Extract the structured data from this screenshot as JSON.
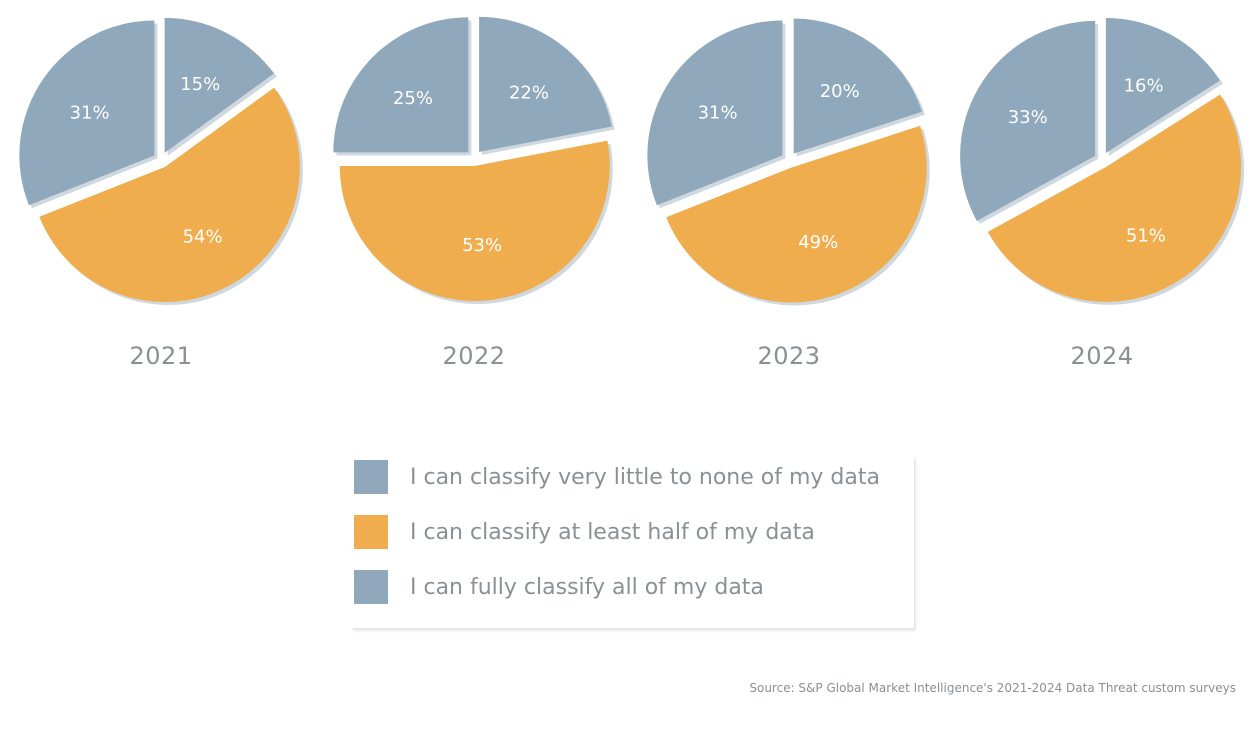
{
  "colors": {
    "blue": "#8fa8bb",
    "orange": "#f0ad4e",
    "shadow": "#aab8c4",
    "text": "#8a9094"
  },
  "legend": {
    "items": [
      {
        "label": "I can classify very little to none of my data",
        "color": "#8fa8bb"
      },
      {
        "label": "I can classify at least half of my data",
        "color": "#f0ad4e"
      },
      {
        "label": "I can fully classify all of my data",
        "color": "#8fa8bb"
      }
    ]
  },
  "source": "Source: S&P Global Market Intelligence's 2021-2024 Data Threat custom surveys",
  "chart_data": [
    {
      "type": "pie",
      "title": "2021",
      "slices": [
        {
          "label": "15%",
          "value": 15,
          "category": "I can fully classify all of my data",
          "color": "#8fa8bb"
        },
        {
          "label": "54%",
          "value": 54,
          "category": "I can classify at least half of my data",
          "color": "#f0ad4e"
        },
        {
          "label": "31%",
          "value": 31,
          "category": "I can classify very little to none of my data",
          "color": "#8fa8bb"
        }
      ]
    },
    {
      "type": "pie",
      "title": "2022",
      "slices": [
        {
          "label": "22%",
          "value": 22,
          "category": "I can fully classify all of my data",
          "color": "#8fa8bb"
        },
        {
          "label": "53%",
          "value": 53,
          "category": "I can classify at least half of my data",
          "color": "#f0ad4e"
        },
        {
          "label": "25%",
          "value": 25,
          "category": "I can classify very little to none of my data",
          "color": "#8fa8bb"
        }
      ]
    },
    {
      "type": "pie",
      "title": "2023",
      "slices": [
        {
          "label": "20%",
          "value": 20,
          "category": "I can fully classify all of my data",
          "color": "#8fa8bb"
        },
        {
          "label": "49%",
          "value": 49,
          "category": "I can classify at least half of my data",
          "color": "#f0ad4e"
        },
        {
          "label": "31%",
          "value": 31,
          "category": "I can classify very little to none of my data",
          "color": "#8fa8bb"
        }
      ]
    },
    {
      "type": "pie",
      "title": "2024",
      "slices": [
        {
          "label": "16%",
          "value": 16,
          "category": "I can fully classify all of my data",
          "color": "#8fa8bb"
        },
        {
          "label": "51%",
          "value": 51,
          "category": "I can classify at least half of my data",
          "color": "#f0ad4e"
        },
        {
          "label": "33%",
          "value": 33,
          "category": "I can classify very little to none of my data",
          "color": "#8fa8bb"
        }
      ]
    }
  ]
}
